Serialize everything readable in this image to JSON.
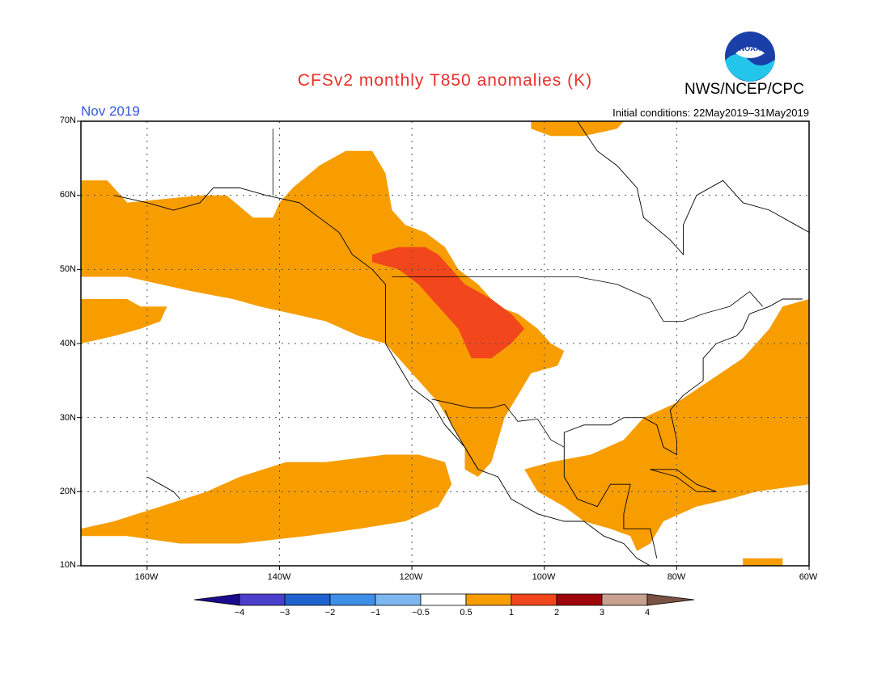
{
  "title": "CFSv2 monthly T850 anomalies (K)",
  "agency": "NWS/NCEP/CPC",
  "logo_text": "NOAA",
  "valid_month": "Nov 2019",
  "initial_conditions": "Initial conditions: 22May2019–31May2019",
  "colors": {
    "title": "#e8302a",
    "month": "#3457d8",
    "positive_anomaly": "#f79d00",
    "strong_anomaly": "#f2461d"
  },
  "lat_labels": [
    "70N",
    "60N",
    "50N",
    "40N",
    "30N",
    "20N",
    "10N"
  ],
  "lon_labels": [
    "160W",
    "140W",
    "120W",
    "100W",
    "80W",
    "60W"
  ],
  "colorbar": {
    "ticks": [
      "−4",
      "−3",
      "−2",
      "−1",
      "−0.5",
      "0.5",
      "1",
      "2",
      "3",
      "4"
    ],
    "colors": [
      "#1c0b8c",
      "#4b3fcc",
      "#1f62cf",
      "#3f8fe8",
      "#7cb8ef",
      "#ffffff",
      "#f79d00",
      "#f2461d",
      "#a0050c",
      "#c7a18f",
      "#7a5243"
    ]
  },
  "map": {
    "extent": {
      "lon_min": -170,
      "lon_max": -60,
      "lat_min": 10,
      "lat_max": 70
    },
    "graticule_step_deg": 10,
    "regions": [
      {
        "class": "0.5-1",
        "polygon": [
          [
            -170,
            62
          ],
          [
            -166,
            62
          ],
          [
            -163,
            59
          ],
          [
            -152,
            60
          ],
          [
            -148,
            60
          ],
          [
            -144,
            57
          ],
          [
            -141,
            57
          ],
          [
            -140,
            59
          ],
          [
            -138,
            61
          ],
          [
            -134,
            64
          ],
          [
            -130,
            66
          ],
          [
            -126,
            66
          ],
          [
            -124,
            63
          ],
          [
            -123,
            58
          ],
          [
            -121,
            56
          ],
          [
            -118,
            55
          ],
          [
            -115,
            53
          ],
          [
            -113,
            50
          ],
          [
            -110,
            48
          ],
          [
            -107,
            45
          ],
          [
            -104,
            44
          ],
          [
            -101,
            42
          ],
          [
            -99,
            40
          ],
          [
            -97,
            39
          ],
          [
            -98,
            37
          ],
          [
            -102,
            36
          ],
          [
            -104,
            33
          ],
          [
            -106,
            30
          ],
          [
            -107,
            27
          ],
          [
            -108,
            24
          ],
          [
            -110,
            22
          ],
          [
            -112,
            23
          ],
          [
            -112,
            26
          ],
          [
            -114,
            29
          ],
          [
            -116,
            32
          ],
          [
            -118,
            34
          ],
          [
            -120,
            36
          ],
          [
            -122,
            38
          ],
          [
            -124,
            40
          ],
          [
            -128,
            41
          ],
          [
            -133,
            43
          ],
          [
            -138,
            44
          ],
          [
            -143,
            45
          ],
          [
            -147,
            46
          ],
          [
            -153,
            47
          ],
          [
            -158,
            48
          ],
          [
            -163,
            49
          ],
          [
            -170,
            49
          ]
        ]
      },
      {
        "class": "0.5-1",
        "polygon": [
          [
            -170,
            46
          ],
          [
            -163,
            46
          ],
          [
            -161,
            45
          ],
          [
            -157,
            45
          ],
          [
            -158,
            43
          ],
          [
            -161,
            42
          ],
          [
            -165,
            41
          ],
          [
            -170,
            40
          ]
        ]
      },
      {
        "class": "0.5-1",
        "polygon": [
          [
            -170,
            15
          ],
          [
            -165,
            16
          ],
          [
            -158,
            18
          ],
          [
            -151,
            20
          ],
          [
            -146,
            22
          ],
          [
            -139,
            24
          ],
          [
            -133,
            24
          ],
          [
            -124,
            25
          ],
          [
            -119,
            25
          ],
          [
            -115,
            24
          ],
          [
            -114,
            21
          ],
          [
            -116,
            18
          ],
          [
            -121,
            16
          ],
          [
            -128,
            15
          ],
          [
            -136,
            14
          ],
          [
            -146,
            13
          ],
          [
            -155,
            13
          ],
          [
            -163,
            14
          ],
          [
            -170,
            14
          ]
        ]
      },
      {
        "class": "0.5-1",
        "polygon": [
          [
            -103,
            23
          ],
          [
            -99,
            24
          ],
          [
            -93,
            25
          ],
          [
            -88,
            27
          ],
          [
            -85,
            30
          ],
          [
            -80,
            32
          ],
          [
            -75,
            35
          ],
          [
            -70,
            38
          ],
          [
            -66,
            42
          ],
          [
            -64,
            45
          ],
          [
            -60,
            46
          ],
          [
            -60,
            21
          ],
          [
            -68,
            20
          ],
          [
            -72,
            19
          ],
          [
            -77,
            18
          ],
          [
            -82,
            16
          ],
          [
            -84,
            13
          ],
          [
            -86,
            12
          ],
          [
            -87,
            14
          ],
          [
            -90,
            15
          ],
          [
            -94,
            16
          ],
          [
            -97,
            18
          ],
          [
            -101,
            20
          ]
        ]
      },
      {
        "class": "0.5-1",
        "polygon": [
          [
            -102,
            70
          ],
          [
            -88,
            70
          ],
          [
            -89,
            69
          ],
          [
            -94,
            68
          ],
          [
            -99,
            68
          ],
          [
            -102,
            69
          ]
        ]
      },
      {
        "class": "0.5-1",
        "polygon": [
          [
            -70,
            11
          ],
          [
            -64,
            11
          ],
          [
            -64,
            10
          ],
          [
            -70,
            10
          ]
        ]
      },
      {
        "class": "1-2",
        "polygon": [
          [
            -126,
            52
          ],
          [
            -122,
            53
          ],
          [
            -118,
            53
          ],
          [
            -116,
            52
          ],
          [
            -114,
            50
          ],
          [
            -112,
            48
          ],
          [
            -108,
            46
          ],
          [
            -105,
            44
          ],
          [
            -103,
            42
          ],
          [
            -105,
            40
          ],
          [
            -108,
            38
          ],
          [
            -111,
            38
          ],
          [
            -112,
            40
          ],
          [
            -113,
            42
          ],
          [
            -115,
            44
          ],
          [
            -117,
            46
          ],
          [
            -119,
            48
          ],
          [
            -122,
            50
          ],
          [
            -126,
            51
          ]
        ]
      }
    ],
    "coastlines": [
      [
        [
          -165,
          60
        ],
        [
          -160,
          59
        ],
        [
          -156,
          58
        ],
        [
          -152,
          59
        ],
        [
          -150,
          61
        ],
        [
          -146,
          61
        ],
        [
          -142,
          60
        ],
        [
          -137,
          59
        ],
        [
          -134,
          57
        ],
        [
          -131,
          55
        ],
        [
          -129,
          52
        ],
        [
          -126,
          50
        ],
        [
          -124,
          48
        ],
        [
          -124,
          44
        ],
        [
          -124,
          40
        ],
        [
          -122,
          37
        ],
        [
          -120,
          34
        ],
        [
          -117,
          32
        ],
        [
          -115,
          29
        ],
        [
          -112,
          26
        ],
        [
          -110,
          23
        ],
        [
          -107,
          22
        ],
        [
          -105,
          19
        ],
        [
          -101,
          17
        ],
        [
          -97,
          16
        ],
        [
          -94,
          16
        ],
        [
          -91,
          14
        ],
        [
          -88,
          13
        ],
        [
          -86,
          11
        ],
        [
          -84,
          10
        ]
      ],
      [
        [
          -110,
          23
        ],
        [
          -112,
          26
        ],
        [
          -114,
          29
        ],
        [
          -115,
          31
        ]
      ],
      [
        [
          -97,
          26
        ],
        [
          -97,
          28
        ],
        [
          -94,
          29
        ],
        [
          -90,
          29
        ],
        [
          -88,
          30
        ],
        [
          -85,
          30
        ],
        [
          -83,
          29
        ],
        [
          -82,
          26
        ],
        [
          -80,
          25
        ],
        [
          -80,
          27
        ],
        [
          -81,
          31
        ],
        [
          -79,
          33
        ],
        [
          -76,
          35
        ],
        [
          -76,
          38
        ],
        [
          -74,
          40
        ],
        [
          -71,
          41
        ],
        [
          -70,
          42
        ],
        [
          -69,
          44
        ],
        [
          -66,
          45
        ],
        [
          -64,
          46
        ],
        [
          -61,
          46
        ]
      ],
      [
        [
          -97,
          26
        ],
        [
          -97,
          22
        ],
        [
          -95,
          19
        ],
        [
          -92,
          18
        ],
        [
          -90,
          21
        ],
        [
          -87,
          21
        ],
        [
          -88,
          17
        ],
        [
          -88,
          15
        ],
        [
          -84,
          15
        ],
        [
          -83,
          11
        ]
      ],
      [
        [
          -84,
          23
        ],
        [
          -80,
          23
        ],
        [
          -77,
          21
        ],
        [
          -74,
          20
        ],
        [
          -77,
          20
        ],
        [
          -80,
          22
        ],
        [
          -84,
          23
        ]
      ],
      [
        [
          -95,
          70
        ],
        [
          -92,
          66
        ],
        [
          -89,
          64
        ],
        [
          -86,
          61
        ],
        [
          -85,
          57
        ],
        [
          -81,
          54
        ],
        [
          -79,
          52
        ],
        [
          -79,
          56
        ],
        [
          -77,
          60
        ],
        [
          -73,
          62
        ],
        [
          -70,
          59
        ],
        [
          -66,
          58
        ],
        [
          -62,
          56
        ],
        [
          -58,
          54
        ]
      ],
      [
        [
          -160,
          22
        ],
        [
          -158,
          21
        ],
        [
          -156,
          20
        ],
        [
          -155,
          19
        ]
      ]
    ],
    "borders": [
      [
        [
          -141,
          60
        ],
        [
          -141,
          69
        ]
      ],
      [
        [
          -123,
          49
        ],
        [
          -95,
          49
        ],
        [
          -89,
          48
        ],
        [
          -84,
          46
        ],
        [
          -82,
          43
        ],
        [
          -79,
          43
        ],
        [
          -76,
          44
        ],
        [
          -72,
          45
        ],
        [
          -69,
          47
        ],
        [
          -67,
          45
        ]
      ],
      [
        [
          -117,
          32.5
        ],
        [
          -111,
          31.3
        ],
        [
          -108,
          31.3
        ],
        [
          -106,
          31.8
        ],
        [
          -104,
          29.5
        ],
        [
          -101,
          29.8
        ],
        [
          -99,
          27
        ],
        [
          -97,
          26
        ]
      ]
    ]
  }
}
